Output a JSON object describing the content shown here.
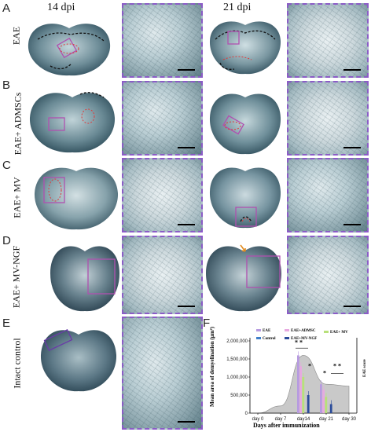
{
  "columns": {
    "left": "14 dpi",
    "right": "21 dpi"
  },
  "panels": [
    {
      "letter": "A",
      "row_label": "EAE"
    },
    {
      "letter": "B",
      "row_label": "EAE+ ADMSCs"
    },
    {
      "letter": "C",
      "row_label": "EAE+ MV"
    },
    {
      "letter": "D",
      "row_label": "EAE+ MV-NGF"
    },
    {
      "letter": "E",
      "row_label": "Intact control"
    },
    {
      "letter": "F"
    }
  ],
  "colors": {
    "zoom_border": "#8b5cc7",
    "lesion_outline": "#e03a3a",
    "demyelination_outline": "#111111",
    "arrow": "#e08a1e"
  },
  "chart_data": {
    "type": "bar",
    "ylabel": "Mean area of demyelination (µm²)",
    "y2label": "EAE score",
    "xlabel": "Days after immunization",
    "categories": [
      "day 0",
      "day 7",
      "day14",
      "day 21",
      "day 30"
    ],
    "ylim": [
      0,
      2000000
    ],
    "yticks": [
      "0",
      "500,000",
      "1,000,000",
      "1,500,000",
      "2,000,000"
    ],
    "legend": [
      "EAE",
      "EAE+ADMSC",
      "EAE+ MV",
      "Control",
      "EAE+MV-NGF"
    ],
    "series": [
      {
        "name": "EAE",
        "color": "#b79be0",
        "values": [
          null,
          null,
          1600000,
          800000,
          null
        ]
      },
      {
        "name": "EAE+ADMSC",
        "color": "#e7a9e0",
        "values": [
          null,
          null,
          1300000,
          650000,
          null
        ]
      },
      {
        "name": "EAE+ MV",
        "color": "#b8e07a",
        "values": [
          null,
          null,
          1000000,
          450000,
          null
        ]
      },
      {
        "name": "Control",
        "color": "#3f7ec9",
        "values": [
          null,
          null,
          0,
          0,
          null
        ]
      },
      {
        "name": "EAE+MV-NGF",
        "color": "#2b4c9a",
        "values": [
          null,
          null,
          500000,
          250000,
          null
        ]
      }
    ],
    "significance": [
      "* *",
      "*",
      "*",
      "* *"
    ],
    "area": {
      "fill": "#c9c9c9",
      "values": [
        0,
        200000,
        1600000,
        800000,
        750000
      ]
    }
  }
}
